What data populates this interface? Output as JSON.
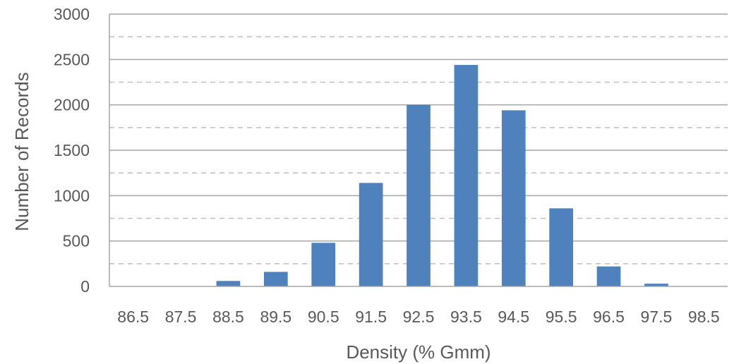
{
  "chart_data": {
    "type": "bar",
    "title": "",
    "xlabel": "Density (% Gmm)",
    "ylabel": "Number of Records",
    "categories": [
      "86.5",
      "87.5",
      "88.5",
      "89.5",
      "90.5",
      "91.5",
      "92.5",
      "93.5",
      "94.5",
      "95.5",
      "96.5",
      "97.5",
      "98.5"
    ],
    "values": [
      0,
      0,
      60,
      160,
      480,
      1140,
      2000,
      2440,
      1940,
      860,
      220,
      30,
      0
    ],
    "yticks": [
      "0",
      "500",
      "1000",
      "1500",
      "2000",
      "2500",
      "3000"
    ],
    "ylim": [
      0,
      3000
    ],
    "major_gridlines": true,
    "minor_gridlines": "dashed",
    "legend": "none",
    "colors": {
      "bar": "#4f81bd",
      "major_grid": "#a6a6a6",
      "minor_grid": "#bfbfbf",
      "text": "#595959"
    }
  }
}
